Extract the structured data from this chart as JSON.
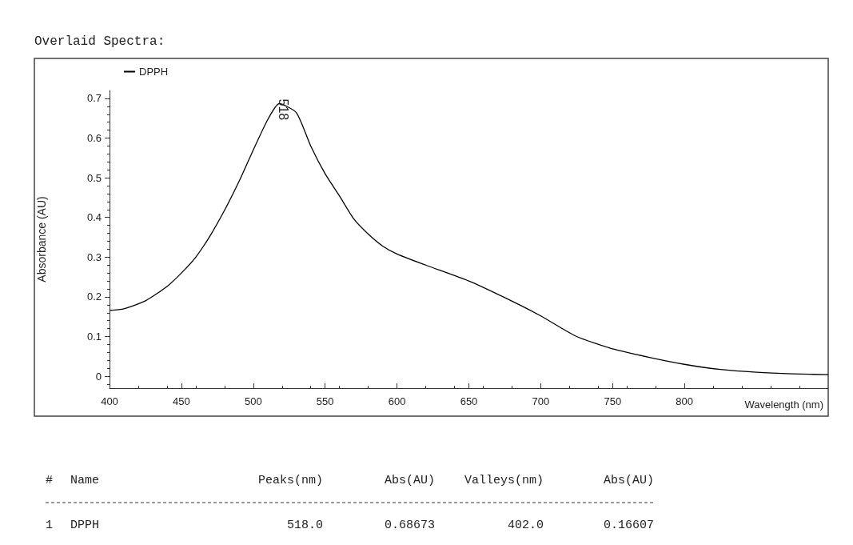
{
  "chart_data": {
    "type": "line",
    "title": "Overlaid Spectra:",
    "xlabel": "Wavelength (nm)",
    "ylabel": "Absorbance (AU)",
    "x": [
      400,
      410,
      425,
      440,
      450,
      460,
      470,
      480,
      490,
      500,
      510,
      518,
      530,
      540,
      550,
      560,
      570,
      580,
      590,
      600,
      620,
      650,
      675,
      700,
      725,
      750,
      775,
      800,
      825,
      850,
      875,
      900
    ],
    "series": [
      {
        "name": "DPPH",
        "color": "#000000",
        "values": [
          0.166,
          0.17,
          0.19,
          0.226,
          0.26,
          0.3,
          0.354,
          0.418,
          0.49,
          0.57,
          0.646,
          0.68673,
          0.664,
          0.58,
          0.51,
          0.454,
          0.396,
          0.358,
          0.328,
          0.308,
          0.28,
          0.24,
          0.198,
          0.152,
          0.1,
          0.069,
          0.048,
          0.03,
          0.017,
          0.01,
          0.006,
          0.004
        ]
      }
    ],
    "xlim": [
      400,
      900
    ],
    "xticks": [
      400,
      450,
      500,
      550,
      600,
      650,
      700,
      750,
      800
    ],
    "ylim": [
      -0.03,
      0.72
    ],
    "yticks": [
      0,
      0.1,
      0.2,
      0.3,
      0.4,
      0.5,
      0.6,
      0.7
    ],
    "grid": false,
    "legend": "top left",
    "marker": "none",
    "line_style": "solid",
    "annotations": [
      {
        "text": "518",
        "x": 518,
        "y": 0.68673
      },
      "#",
      "Name",
      "Peaks(nm)",
      "Abs(AU)",
      "Valleys(nm)",
      "Abs(AU)",
      "1",
      "DPPH",
      "518.0",
      "0.68673",
      "402.0",
      "0.16607"
    ]
  }
}
